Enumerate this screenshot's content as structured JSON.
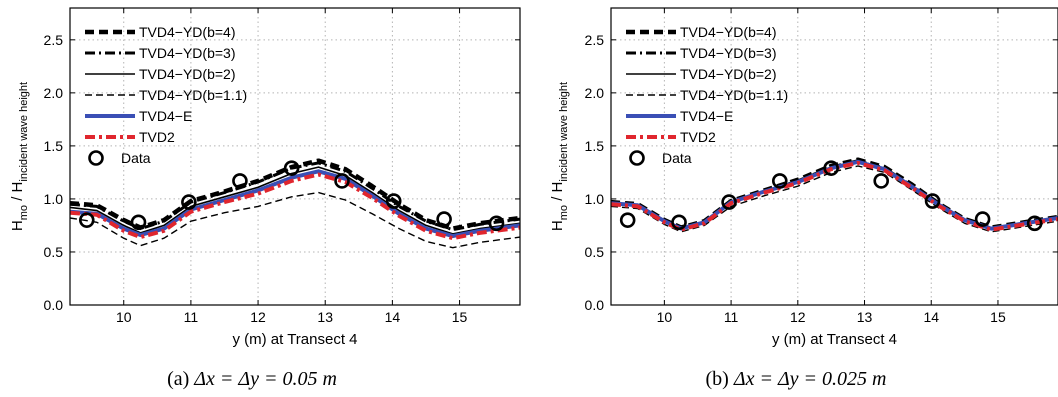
{
  "chart_data": [
    {
      "type": "line",
      "caption_label": "(a)",
      "caption_math": "Δx = Δy = 0.05 m",
      "xlabel": "y (m) at Transect 4",
      "ylabel_main": "H",
      "ylabel_sub1": "mo",
      "ylabel_mid": " / H",
      "ylabel_sub2": "incident wave height",
      "xlim": [
        9.2,
        15.9
      ],
      "ylim": [
        0,
        2.8
      ],
      "xticks": [
        "10",
        "11",
        "12",
        "13",
        "14",
        "15"
      ],
      "yticks": [
        "0.0",
        "0.5",
        "1.0",
        "1.5",
        "2.0",
        "2.5"
      ],
      "grid": true,
      "legend_position": "top-left",
      "x": [
        9.2,
        9.6,
        10.0,
        10.25,
        10.6,
        11.0,
        11.5,
        12.0,
        12.5,
        12.9,
        13.3,
        13.7,
        14.1,
        14.5,
        14.9,
        15.3,
        15.9
      ],
      "series": [
        {
          "name": "TVD4−YD(b=4)",
          "values": [
            0.96,
            0.94,
            0.8,
            0.73,
            0.8,
            0.98,
            1.07,
            1.17,
            1.3,
            1.36,
            1.28,
            1.12,
            0.95,
            0.8,
            0.72,
            0.77,
            0.82
          ]
        },
        {
          "name": "TVD4−YD(b=3)",
          "values": [
            0.95,
            0.93,
            0.79,
            0.72,
            0.79,
            0.97,
            1.06,
            1.16,
            1.29,
            1.34,
            1.26,
            1.1,
            0.93,
            0.79,
            0.71,
            0.76,
            0.81
          ]
        },
        {
          "name": "TVD4−YD(b=2)",
          "values": [
            0.92,
            0.89,
            0.75,
            0.68,
            0.75,
            0.93,
            1.02,
            1.11,
            1.24,
            1.3,
            1.22,
            1.06,
            0.89,
            0.75,
            0.67,
            0.72,
            0.77
          ]
        },
        {
          "name": "TVD4−YD(b=1.1)",
          "values": [
            0.82,
            0.78,
            0.63,
            0.56,
            0.63,
            0.79,
            0.87,
            0.93,
            1.02,
            1.06,
            0.99,
            0.86,
            0.72,
            0.6,
            0.54,
            0.59,
            0.64
          ]
        },
        {
          "name": "TVD4−E",
          "values": [
            0.88,
            0.86,
            0.72,
            0.66,
            0.72,
            0.9,
            0.99,
            1.08,
            1.2,
            1.26,
            1.19,
            1.03,
            0.86,
            0.72,
            0.65,
            0.7,
            0.75
          ]
        },
        {
          "name": "TVD2",
          "values": [
            0.87,
            0.85,
            0.7,
            0.64,
            0.7,
            0.88,
            0.97,
            1.05,
            1.17,
            1.23,
            1.16,
            1.01,
            0.84,
            0.7,
            0.63,
            0.68,
            0.73
          ]
        }
      ],
      "scatter": {
        "name": "Data",
        "x": [
          9.45,
          10.22,
          10.97,
          11.73,
          12.5,
          13.25,
          14.02,
          14.77,
          15.55
        ],
        "y": [
          0.8,
          0.78,
          0.97,
          1.17,
          1.29,
          1.17,
          0.98,
          0.81,
          0.77
        ]
      }
    },
    {
      "type": "line",
      "caption_label": "(b)",
      "caption_math": "Δx = Δy = 0.025 m",
      "xlabel": "y (m) at Transect 4",
      "ylabel_main": "H",
      "ylabel_sub1": "mo",
      "ylabel_mid": " / H",
      "ylabel_sub2": "incident wave height",
      "xlim": [
        9.2,
        15.9
      ],
      "ylim": [
        0,
        2.8
      ],
      "xticks": [
        "10",
        "11",
        "12",
        "13",
        "14",
        "15"
      ],
      "yticks": [
        "0.0",
        "0.5",
        "1.0",
        "1.5",
        "2.0",
        "2.5"
      ],
      "grid": true,
      "legend_position": "top-left",
      "x": [
        9.2,
        9.6,
        10.0,
        10.25,
        10.6,
        11.0,
        11.5,
        12.0,
        12.5,
        12.9,
        13.3,
        13.7,
        14.1,
        14.5,
        14.9,
        15.3,
        15.9
      ],
      "series": [
        {
          "name": "TVD4−YD(b=4)",
          "values": [
            0.97,
            0.95,
            0.8,
            0.73,
            0.79,
            0.98,
            1.08,
            1.18,
            1.31,
            1.37,
            1.3,
            1.14,
            0.96,
            0.81,
            0.73,
            0.77,
            0.83
          ]
        },
        {
          "name": "TVD4−YD(b=3)",
          "values": [
            0.96,
            0.94,
            0.79,
            0.72,
            0.78,
            0.97,
            1.07,
            1.17,
            1.3,
            1.36,
            1.29,
            1.13,
            0.95,
            0.8,
            0.72,
            0.76,
            0.82
          ]
        },
        {
          "name": "TVD4−YD(b=2)",
          "values": [
            0.96,
            0.94,
            0.79,
            0.72,
            0.78,
            0.97,
            1.07,
            1.17,
            1.3,
            1.36,
            1.29,
            1.13,
            0.95,
            0.8,
            0.72,
            0.76,
            0.82
          ]
        },
        {
          "name": "TVD4−YD(b=1.1)",
          "values": [
            0.93,
            0.91,
            0.76,
            0.69,
            0.75,
            0.93,
            1.03,
            1.12,
            1.25,
            1.31,
            1.25,
            1.09,
            0.92,
            0.77,
            0.69,
            0.73,
            0.79
          ]
        },
        {
          "name": "TVD4−E",
          "values": [
            0.96,
            0.94,
            0.79,
            0.72,
            0.78,
            0.97,
            1.07,
            1.16,
            1.29,
            1.35,
            1.28,
            1.12,
            0.95,
            0.8,
            0.72,
            0.76,
            0.82
          ]
        },
        {
          "name": "TVD2",
          "values": [
            0.95,
            0.93,
            0.78,
            0.71,
            0.77,
            0.96,
            1.06,
            1.15,
            1.28,
            1.34,
            1.27,
            1.11,
            0.94,
            0.79,
            0.71,
            0.75,
            0.81
          ]
        }
      ],
      "scatter": {
        "name": "Data",
        "x": [
          9.45,
          10.22,
          10.97,
          11.73,
          12.5,
          13.25,
          14.02,
          14.77,
          15.55
        ],
        "y": [
          0.8,
          0.78,
          0.97,
          1.17,
          1.29,
          1.17,
          0.98,
          0.81,
          0.77
        ]
      }
    }
  ],
  "styles": {
    "black": "#000000",
    "blue": "#3a4fb5",
    "red": "#e0262e",
    "grid": "#b4b4b4"
  }
}
